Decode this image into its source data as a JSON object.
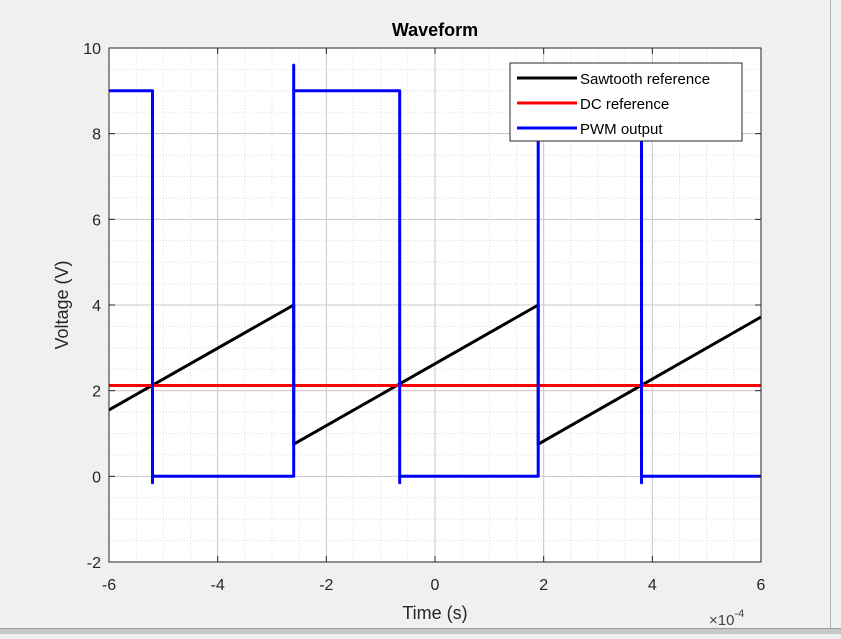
{
  "chart_data": {
    "type": "line",
    "title": "Waveform",
    "xlabel": "Time (s)",
    "ylabel": "Voltage (V)",
    "x_exponent_label": "×10",
    "x_exponent_power": "-4",
    "xlim": [
      -6,
      6
    ],
    "ylim": [
      -2,
      10
    ],
    "xticks": [
      -6,
      -4,
      -2,
      0,
      2,
      4,
      6
    ],
    "yticks": [
      -2,
      0,
      2,
      4,
      6,
      8,
      10
    ],
    "xtick_labels": [
      "-6",
      "-4",
      "-2",
      "0",
      "2",
      "4",
      "6"
    ],
    "ytick_labels": [
      "-2",
      "0",
      "2",
      "4",
      "6",
      "8",
      "10"
    ],
    "grid": true,
    "minor_grid": true,
    "legend_position": "top-right",
    "series": [
      {
        "name": "Sawtooth reference",
        "color": "#000000",
        "x": [
          -6.0,
          -2.6,
          -2.6,
          1.9,
          1.9,
          6.0
        ],
        "y": [
          1.55,
          4.0,
          0.75,
          4.0,
          0.75,
          3.72
        ]
      },
      {
        "name": "DC reference",
        "color": "#ff0000",
        "x": [
          -6.0,
          6.0
        ],
        "y": [
          2.12,
          2.12
        ]
      },
      {
        "name": "PWM output",
        "color": "#0000ff",
        "x": [
          -6.0,
          -5.2,
          -5.2,
          -5.2,
          -2.6,
          -2.6,
          -2.6,
          -2.5,
          -0.65,
          -0.65,
          -0.65,
          1.9,
          1.9,
          1.9,
          3.8,
          3.8,
          3.8,
          6.0
        ],
        "y": [
          9.0,
          9.0,
          -0.15,
          0.0,
          0.0,
          9.6,
          9.0,
          9.0,
          9.0,
          -0.15,
          0.0,
          0.0,
          9.6,
          9.0,
          9.0,
          -0.15,
          0.0,
          0.0
        ]
      }
    ]
  }
}
